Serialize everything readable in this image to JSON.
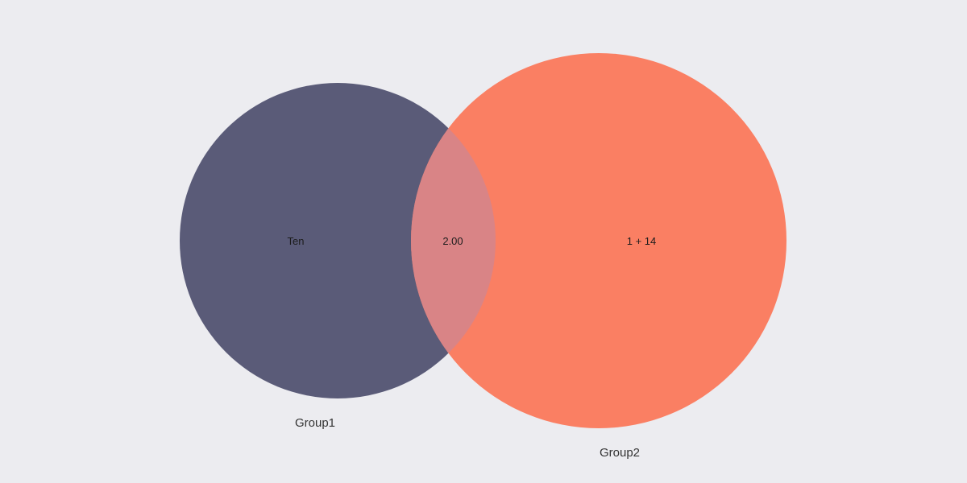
{
  "diagram": {
    "type": "venn",
    "colors": {
      "background": "#ECECF0",
      "group1": "#5A5B78",
      "group2": "#FA7F63",
      "overlap": "#D98486"
    },
    "sets": [
      {
        "name": "Group1",
        "only_label": "Ten"
      },
      {
        "name": "Group2",
        "only_label": "1 + 14"
      }
    ],
    "intersection_label": "2.00"
  }
}
